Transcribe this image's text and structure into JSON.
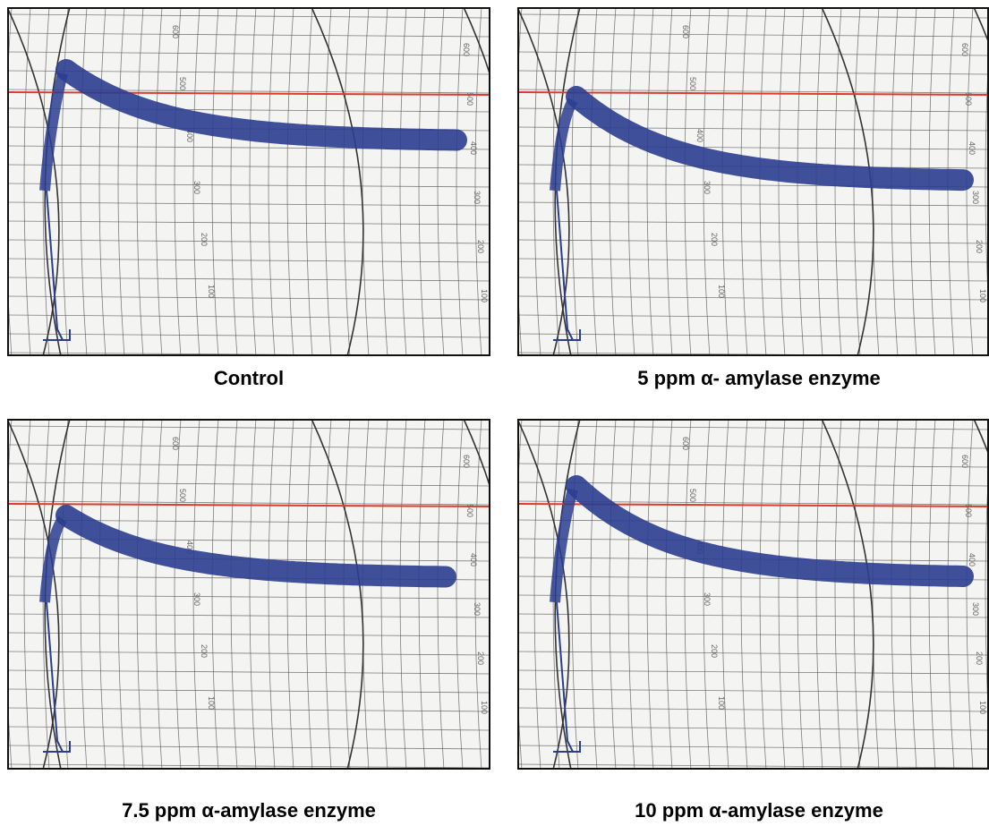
{
  "panels": [
    {
      "caption": "Control"
    },
    {
      "caption": "5 ppm α- amylase enzyme"
    },
    {
      "caption": "7.5 ppm  α-amylase enzyme"
    },
    {
      "caption": "10 ppm α-amylase enzyme"
    }
  ],
  "scale_labels": [
    "600",
    "500",
    "400",
    "300",
    "200",
    "100"
  ]
}
